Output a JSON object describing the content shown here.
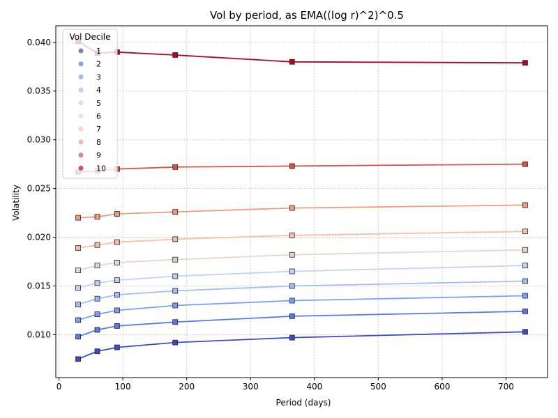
{
  "chart_data": {
    "type": "line",
    "title": "Vol by period, as EMA((log r)^2)^0.5",
    "xlabel": "Period (days)",
    "ylabel": "Volatility",
    "xlim": [
      -5,
      765
    ],
    "ylim": [
      0.0056,
      0.0417
    ],
    "xticks": [
      0,
      100,
      200,
      300,
      400,
      500,
      600,
      700
    ],
    "xtick_labels": [
      "0",
      "100",
      "200",
      "300",
      "400",
      "500",
      "600",
      "700"
    ],
    "yticks": [
      0.01,
      0.015,
      0.02,
      0.025,
      0.03,
      0.035,
      0.04
    ],
    "ytick_labels": [
      "0.010",
      "0.015",
      "0.020",
      "0.025",
      "0.030",
      "0.035",
      "0.040"
    ],
    "grid": true,
    "legend": {
      "title": "Vol Decile",
      "placement": "top-left"
    },
    "x": [
      30,
      60,
      91,
      182,
      365,
      730
    ],
    "series": [
      {
        "name": "1",
        "color": "#3b4cc0",
        "values": [
          0.0075,
          0.0083,
          0.0087,
          0.0092,
          0.0097,
          0.0103
        ]
      },
      {
        "name": "2",
        "color": "#5a78e4",
        "values": [
          0.0098,
          0.0105,
          0.0109,
          0.0113,
          0.0119,
          0.0124
        ]
      },
      {
        "name": "3",
        "color": "#7b9ff9",
        "values": [
          0.0115,
          0.0121,
          0.0125,
          0.013,
          0.0135,
          0.014
        ]
      },
      {
        "name": "4",
        "color": "#9ebeff",
        "values": [
          0.0131,
          0.0137,
          0.0141,
          0.0145,
          0.015,
          0.0155
        ]
      },
      {
        "name": "5",
        "color": "#c0d4f5",
        "values": [
          0.0148,
          0.0153,
          0.0156,
          0.016,
          0.0165,
          0.0171
        ]
      },
      {
        "name": "6",
        "color": "#e8d6cc",
        "values": [
          0.0166,
          0.0171,
          0.0174,
          0.0177,
          0.0182,
          0.0187
        ]
      },
      {
        "name": "7",
        "color": "#f5c0a5",
        "values": [
          0.0189,
          0.0192,
          0.0195,
          0.0198,
          0.0202,
          0.0206
        ]
      },
      {
        "name": "8",
        "color": "#f09c7b",
        "values": [
          0.022,
          0.0221,
          0.0224,
          0.0226,
          0.023,
          0.0233
        ]
      },
      {
        "name": "9",
        "color": "#d75445",
        "values": [
          0.0267,
          0.0268,
          0.027,
          0.0272,
          0.0273,
          0.0275
        ]
      },
      {
        "name": "10",
        "color": "#b40426",
        "values": [
          0.0401,
          0.0389,
          0.039,
          0.0387,
          0.038,
          0.0379
        ]
      }
    ]
  }
}
